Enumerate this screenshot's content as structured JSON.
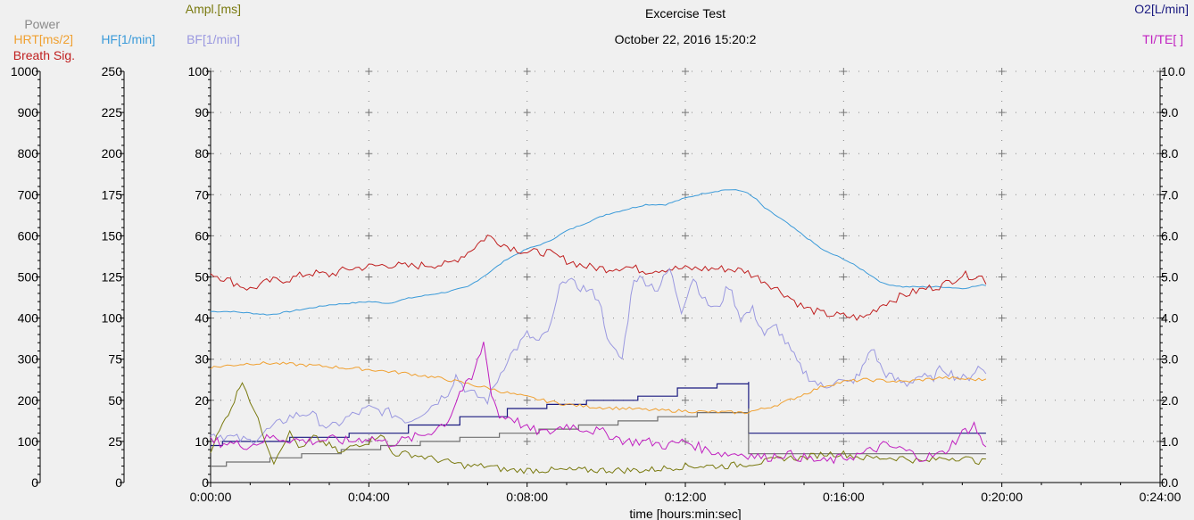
{
  "title": "Excercise Test",
  "subtitle": "October 22, 2016 15:20:2",
  "chart_data": {
    "type": "line",
    "xlabel": "time [hours:min:sec]",
    "x_unit": "minutes",
    "x_ticks": [
      "0:00:00",
      "0:04:00",
      "0:08:00",
      "0:12:00",
      "0:16:00",
      "0:20:00",
      "0:24:00"
    ],
    "xlim": [
      0,
      24
    ],
    "grid": true,
    "axes": [
      {
        "id": "power",
        "side": "left",
        "ticks": [
          "0",
          "100",
          "200",
          "300",
          "400",
          "500",
          "600",
          "700",
          "800",
          "900",
          "1000"
        ],
        "ylim": [
          0,
          1000
        ]
      },
      {
        "id": "hf",
        "side": "left",
        "ticks": [
          "0",
          "25",
          "50",
          "75",
          "100",
          "125",
          "150",
          "175",
          "200",
          "225",
          "250"
        ],
        "ylim": [
          0,
          250
        ]
      },
      {
        "id": "ampl",
        "side": "left",
        "ticks": [
          "0",
          "10",
          "20",
          "30",
          "40",
          "50",
          "60",
          "70",
          "80",
          "90",
          "100"
        ],
        "ylim": [
          0,
          100
        ]
      },
      {
        "id": "o2",
        "side": "right",
        "ticks": [
          "0.0",
          "1.0",
          "2.0",
          "3.0",
          "4.0",
          "5.0",
          "6.0",
          "7.0",
          "8.0",
          "9.0",
          "10.0"
        ],
        "ylim": [
          0,
          10
        ]
      }
    ],
    "axis_titles": {
      "power": "Power",
      "hrt": "HRT[ms/2]",
      "breath": "Breath Sig.",
      "hf": "HF[1/min]",
      "ampl": "Ampl.[ms]",
      "bf": "BF[1/min]",
      "o2": "O2[L/min]",
      "titE": "TI/TE[ ]"
    },
    "series": [
      {
        "key": "hf",
        "color": "#3a9ad9",
        "scale": [
          0,
          250
        ],
        "noise": 0.4,
        "x": [
          0,
          0.5,
          1,
          1.5,
          2,
          2.5,
          3,
          3.5,
          4,
          4.5,
          5,
          5.5,
          6,
          6.5,
          7,
          7.5,
          8,
          8.5,
          9,
          9.5,
          10,
          10.5,
          11,
          11.5,
          12,
          12.5,
          13,
          13.2,
          13.5,
          13.8,
          14,
          14.5,
          15,
          15.5,
          16,
          16.5,
          17,
          17.5,
          18,
          18.5,
          19,
          19.5,
          19.6
        ],
        "y": [
          104,
          104,
          103,
          102,
          104,
          106,
          108,
          109,
          110,
          109,
          112,
          114,
          116,
          119,
          127,
          136,
          142,
          146,
          153,
          158,
          163,
          166,
          169,
          169,
          173,
          176,
          178,
          178,
          177,
          172,
          167,
          159,
          150,
          141,
          136,
          129,
          121,
          119,
          119,
          119,
          118,
          120,
          120
        ]
      },
      {
        "key": "breath",
        "color": "#c02020",
        "scale": [
          0,
          1000
        ],
        "noise": 10,
        "x": [
          0,
          0.5,
          1,
          1.5,
          2,
          2.5,
          3,
          3.5,
          4,
          4.5,
          5,
          5.5,
          6,
          6.5,
          7,
          7.5,
          8,
          8.5,
          9,
          9.5,
          10,
          10.5,
          11,
          11.5,
          12,
          12.5,
          13,
          13.5,
          14,
          14.5,
          15,
          15.5,
          16,
          16.5,
          17,
          17.5,
          18,
          18.5,
          19,
          19.5,
          19.6
        ],
        "y": [
          510,
          490,
          470,
          490,
          495,
          510,
          505,
          520,
          525,
          530,
          525,
          530,
          530,
          560,
          600,
          575,
          560,
          560,
          540,
          525,
          520,
          525,
          515,
          520,
          520,
          520,
          520,
          515,
          490,
          460,
          425,
          410,
          405,
          400,
          435,
          455,
          470,
          480,
          505,
          500,
          490
        ]
      },
      {
        "key": "bf",
        "color": "#9a98e0",
        "scale": [
          0,
          100
        ],
        "noise": 1.2,
        "x": [
          0,
          0.5,
          1,
          1.5,
          2,
          2.5,
          3,
          3.5,
          4,
          4.5,
          5,
          5.5,
          6,
          6.2,
          6.5,
          7,
          7.5,
          8,
          8.3,
          8.6,
          8.9,
          9.2,
          9.5,
          9.8,
          10.1,
          10.4,
          10.7,
          11,
          11.3,
          11.6,
          11.9,
          12.2,
          12.5,
          12.8,
          13.1,
          13.4,
          13.7,
          14,
          14.3,
          14.6,
          14.9,
          15.2,
          15.5,
          15.8,
          16.1,
          16.4,
          16.7,
          17,
          17.3,
          17.6,
          17.9,
          18.2,
          18.5,
          18.8,
          19.1,
          19.4,
          19.6
        ],
        "y": [
          12,
          11,
          10,
          13,
          16,
          17,
          13,
          16,
          18,
          17,
          15,
          18,
          22,
          26,
          22,
          20,
          30,
          36,
          34,
          38,
          50,
          48,
          47,
          45,
          33,
          30,
          50,
          49,
          47,
          52,
          42,
          50,
          44,
          42,
          48,
          40,
          42,
          36,
          38,
          33,
          28,
          25,
          23,
          25,
          24,
          26,
          33,
          27,
          25,
          24,
          26,
          25,
          28,
          26,
          25,
          28,
          27
        ]
      },
      {
        "key": "hrt",
        "color": "#f0a030",
        "scale": [
          0,
          1000
        ],
        "noise": 4,
        "x": [
          0,
          0.5,
          1,
          1.5,
          2,
          2.5,
          3,
          3.5,
          4,
          4.5,
          5,
          5.5,
          6,
          6.5,
          7,
          7.5,
          8,
          8.5,
          9,
          9.5,
          10,
          10.5,
          11,
          11.5,
          12,
          12.5,
          13,
          13.5,
          14,
          14.5,
          15,
          15.5,
          16,
          16.5,
          17,
          17.5,
          18,
          18.5,
          19,
          19.5,
          19.6
        ],
        "y": [
          280,
          285,
          290,
          290,
          288,
          285,
          282,
          278,
          275,
          270,
          265,
          258,
          250,
          240,
          230,
          218,
          208,
          198,
          190,
          185,
          182,
          180,
          177,
          175,
          174,
          172,
          171,
          170,
          180,
          195,
          215,
          235,
          245,
          250,
          248,
          245,
          250,
          255,
          252,
          250,
          252
        ]
      },
      {
        "key": "ampl",
        "color": "#7a7a10",
        "scale": [
          0,
          100
        ],
        "noise": 0.8,
        "x": [
          0,
          0.3,
          0.6,
          0.8,
          1.0,
          1.2,
          1.4,
          1.6,
          1.8,
          2.0,
          2.3,
          2.6,
          3.0,
          3.3,
          3.6,
          4.0,
          4.3,
          4.6,
          5,
          5.5,
          6,
          6.5,
          7,
          7.5,
          8,
          9,
          10,
          11,
          12,
          13,
          14,
          14.5,
          15,
          15.5,
          16,
          16.5,
          17,
          17.5,
          18,
          18.5,
          19,
          19.5,
          19.6
        ],
        "y": [
          8,
          14,
          20,
          25,
          20,
          15,
          10,
          5,
          9,
          12,
          8,
          11,
          9,
          7,
          9,
          10,
          12,
          7,
          7,
          6,
          5,
          4,
          4,
          3,
          3,
          3,
          3,
          3,
          4,
          4,
          5,
          6,
          6,
          7,
          7,
          6,
          6,
          6,
          5,
          6,
          6,
          5,
          6
        ]
      },
      {
        "key": "titE",
        "color": "#c020c0",
        "scale": [
          0,
          10
        ],
        "noise": 0.12,
        "x": [
          0,
          0.5,
          1,
          1.5,
          2,
          2.5,
          3,
          3.5,
          4,
          4.5,
          5,
          5.5,
          6,
          6.3,
          6.6,
          6.9,
          7.1,
          7.3,
          7.6,
          8,
          8.5,
          9,
          9.5,
          10,
          10.5,
          11,
          11.5,
          12,
          12.5,
          13,
          13.5,
          14,
          14.5,
          15,
          15.5,
          16,
          16.5,
          17,
          17.5,
          18,
          18.5,
          19,
          19.3,
          19.6
        ],
        "y": [
          1.0,
          0.95,
          0.9,
          1.1,
          1.05,
          1.0,
          1.05,
          1.0,
          1.1,
          0.95,
          1.05,
          1.2,
          1.5,
          2.2,
          2.5,
          3.4,
          2.2,
          1.6,
          1.6,
          1.3,
          1.2,
          1.4,
          1.3,
          1.2,
          1.0,
          1.0,
          0.9,
          1.0,
          0.8,
          0.7,
          0.7,
          0.6,
          0.7,
          0.6,
          0.5,
          0.6,
          0.7,
          0.9,
          0.8,
          0.6,
          0.7,
          1.2,
          1.4,
          0.8
        ]
      }
    ],
    "steps": [
      {
        "key": "o2",
        "color": "#1a1a80",
        "scale": [
          0,
          10
        ],
        "x": [
          0,
          0.3,
          2,
          3.5,
          5,
          6.3,
          7.5,
          8.5,
          9.5,
          10.8,
          11.8,
          12.8,
          13.6,
          13.6,
          19.6
        ],
        "y": [
          0.9,
          1.0,
          1.1,
          1.2,
          1.4,
          1.6,
          1.8,
          1.9,
          2.0,
          2.1,
          2.3,
          2.4,
          2.45,
          1.2,
          1.2
        ]
      },
      {
        "key": "power",
        "color": "#707070",
        "scale": [
          0,
          1000
        ],
        "x": [
          0,
          0.4,
          1.5,
          2.3,
          3.3,
          4.3,
          5.3,
          6.3,
          7.3,
          8.3,
          9.3,
          10.3,
          11.3,
          12.3,
          13.6,
          13.6,
          19.6
        ],
        "y": [
          40,
          50,
          60,
          70,
          80,
          90,
          100,
          110,
          120,
          130,
          140,
          150,
          160,
          170,
          180,
          70,
          70
        ]
      }
    ]
  }
}
